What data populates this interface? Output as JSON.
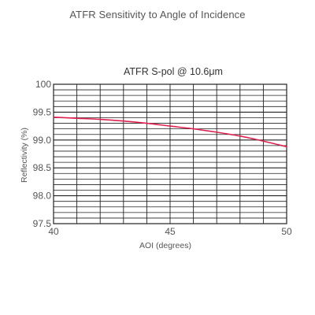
{
  "page": {
    "title": "ATFR Sensitivity to Angle of Incidence"
  },
  "chart_data": {
    "type": "line",
    "title": "ATFR S-pol @ 10.6μm",
    "xlabel": "AOI (degrees)",
    "ylabel": "Reflectivity (%)",
    "xlim": [
      40,
      50
    ],
    "ylim": [
      97.5,
      100
    ],
    "x_ticks": [
      40,
      45,
      50
    ],
    "x_tick_labels": [
      "40",
      "45",
      "50"
    ],
    "y_ticks": [
      97.5,
      98.0,
      98.5,
      99.0,
      99.5,
      100
    ],
    "y_tick_labels": [
      "97.5",
      "98.0",
      "98.5",
      "99.0",
      "99.5",
      "100"
    ],
    "grid": true,
    "series": [
      {
        "color": "#e0204f",
        "x": [
          40,
          41,
          42,
          43,
          44,
          45,
          46,
          47,
          48,
          49,
          50
        ],
        "y": [
          99.41,
          99.39,
          99.37,
          99.34,
          99.3,
          99.25,
          99.2,
          99.14,
          99.07,
          98.98,
          98.88
        ]
      }
    ]
  }
}
